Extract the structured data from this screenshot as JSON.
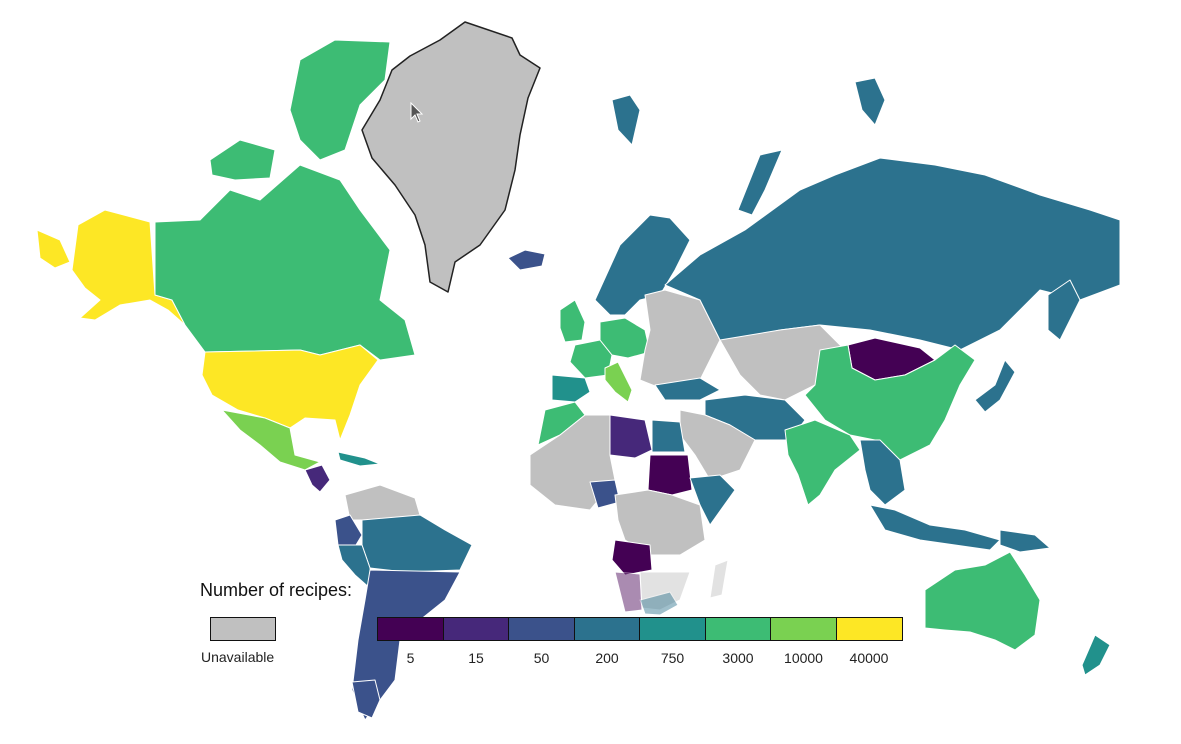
{
  "legend": {
    "title": "Number of recipes:",
    "unavailable_label": "Unavailable",
    "unavailable_color": "#c0c0c0",
    "bins": [
      {
        "label": "5",
        "color": "#440154"
      },
      {
        "label": "15",
        "color": "#46287a"
      },
      {
        "label": "50",
        "color": "#3b528b"
      },
      {
        "label": "200",
        "color": "#2c728e"
      },
      {
        "label": "750",
        "color": "#21918c"
      },
      {
        "label": "3000",
        "color": "#3dbc74"
      },
      {
        "label": "10000",
        "color": "#7ad151"
      },
      {
        "label": "40000",
        "color": "#fde725"
      }
    ]
  },
  "hovered_region": "Greenland",
  "regions": [
    {
      "name": "Alaska",
      "bin": 7
    },
    {
      "name": "Canada",
      "bin": 5
    },
    {
      "name": "United States",
      "bin": 7
    },
    {
      "name": "Mexico",
      "bin": 6
    },
    {
      "name": "Central America",
      "bin": 1
    },
    {
      "name": "Cuba",
      "bin": 4
    },
    {
      "name": "Greenland",
      "bin": -1
    },
    {
      "name": "Iceland",
      "bin": 2
    },
    {
      "name": "Svalbard",
      "bin": 3
    },
    {
      "name": "Colombia",
      "bin": 2
    },
    {
      "name": "Venezuela",
      "bin": -1
    },
    {
      "name": "Brazil",
      "bin": 3
    },
    {
      "name": "Peru",
      "bin": 3
    },
    {
      "name": "Argentina",
      "bin": 2
    },
    {
      "name": "Chile",
      "bin": 2
    },
    {
      "name": "United Kingdom",
      "bin": 5
    },
    {
      "name": "France",
      "bin": 5
    },
    {
      "name": "Spain",
      "bin": 4
    },
    {
      "name": "Italy",
      "bin": 6
    },
    {
      "name": "Scandinavia",
      "bin": 3
    },
    {
      "name": "Eastern Europe",
      "bin": -1
    },
    {
      "name": "Russia",
      "bin": 3
    },
    {
      "name": "Turkey",
      "bin": 3
    },
    {
      "name": "Iran",
      "bin": 3
    },
    {
      "name": "Mongolia",
      "bin": 0
    },
    {
      "name": "China",
      "bin": 5
    },
    {
      "name": "India",
      "bin": 5
    },
    {
      "name": "Southeast Asia",
      "bin": 3
    },
    {
      "name": "Japan",
      "bin": 3
    },
    {
      "name": "Indonesia",
      "bin": 3
    },
    {
      "name": "Libya",
      "bin": 1
    },
    {
      "name": "Egypt",
      "bin": 3
    },
    {
      "name": "Sudan",
      "bin": 0
    },
    {
      "name": "Ethiopia",
      "bin": 3
    },
    {
      "name": "Nigeria",
      "bin": 2
    },
    {
      "name": "Angola",
      "bin": 0
    },
    {
      "name": "Africa (other)",
      "bin": -1
    },
    {
      "name": "Morocco",
      "bin": 5
    },
    {
      "name": "Australia",
      "bin": 5
    },
    {
      "name": "New Zealand",
      "bin": 4
    }
  ]
}
